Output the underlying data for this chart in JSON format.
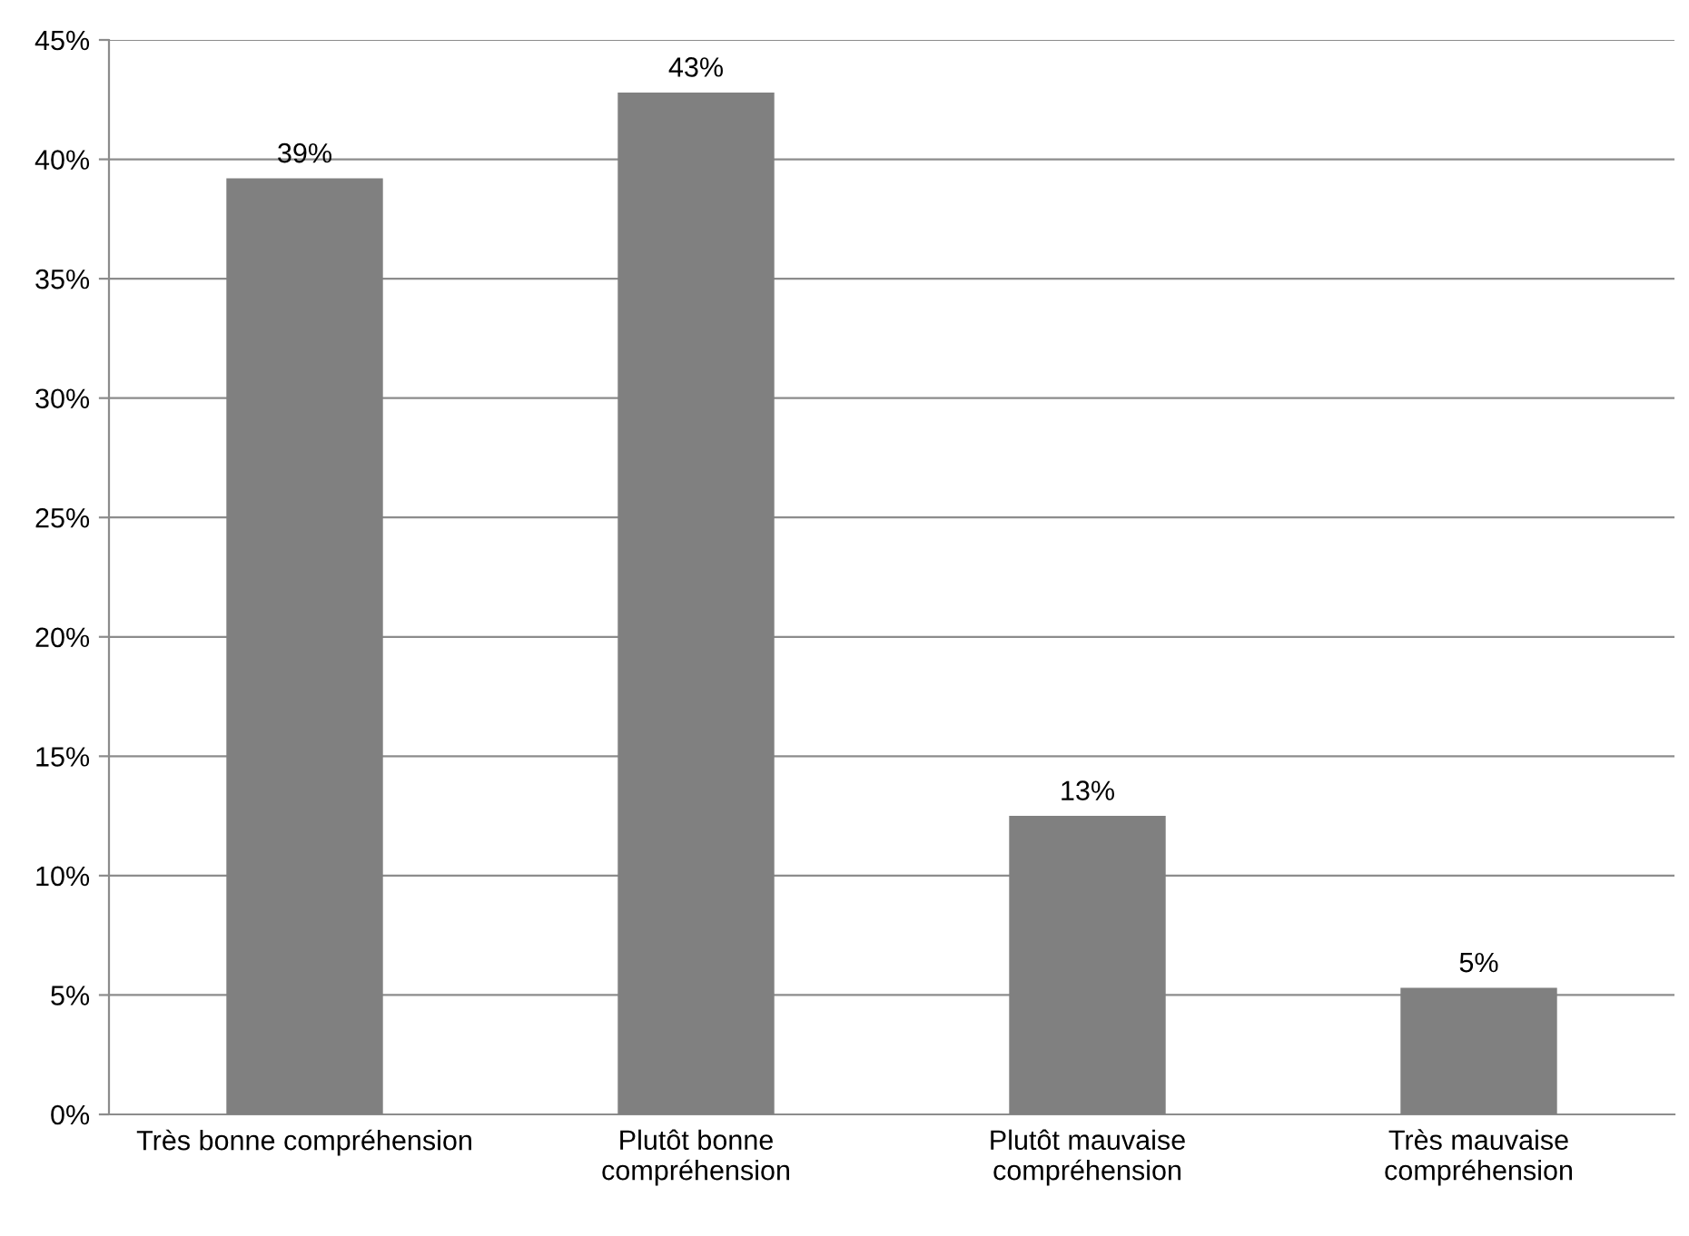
{
  "chart_data": {
    "type": "bar",
    "categories": [
      "Très bonne compréhension",
      "Plutôt bonne\ncompréhension",
      "Plutôt mauvaise\ncompréhension",
      "Très mauvaise\ncompréhension"
    ],
    "values": [
      39.2,
      42.8,
      12.5,
      5.3
    ],
    "value_labels": [
      "39%",
      "43%",
      "13%",
      "5%"
    ],
    "color": "#808080",
    "ylim": [
      0,
      45
    ],
    "yticks": [
      {
        "value": 0,
        "label": "0%"
      },
      {
        "value": 5,
        "label": "5%"
      },
      {
        "value": 10,
        "label": "10%"
      },
      {
        "value": 15,
        "label": "15%"
      },
      {
        "value": 20,
        "label": "20%"
      },
      {
        "value": 25,
        "label": "25%"
      },
      {
        "value": 30,
        "label": "30%"
      },
      {
        "value": 35,
        "label": "35%"
      },
      {
        "value": 40,
        "label": "40%"
      },
      {
        "value": 45,
        "label": "45%"
      }
    ],
    "grid": "y",
    "legend": false
  }
}
